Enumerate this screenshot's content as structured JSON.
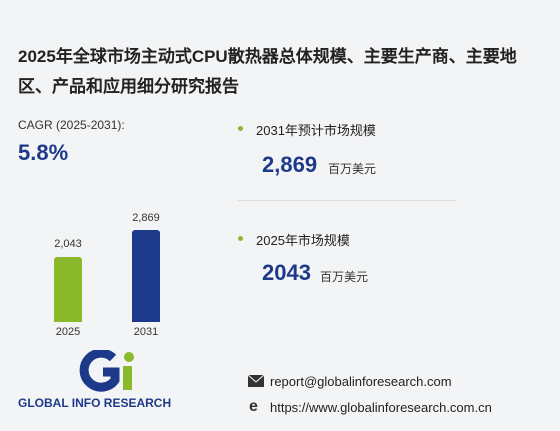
{
  "title": "2025年全球市场主动式CPU散热器总体规模、主要生产商、主要地区、产品和应用细分研究报告",
  "cagr": {
    "label": "CAGR (2025-2031):",
    "value": "5.8%"
  },
  "stats": [
    {
      "label": "2031年预计市场规模",
      "value": "2,869",
      "unit": "百万美元"
    },
    {
      "label": "2025年市场规模",
      "value": "2043",
      "unit": "百万美元"
    }
  ],
  "chart_data": {
    "type": "bar",
    "categories": [
      "2025",
      "2031"
    ],
    "values": [
      2043,
      2869
    ],
    "value_labels": [
      "2,043",
      "2,869"
    ],
    "colors": [
      "#8cb82b",
      "#1d3a8a"
    ]
  },
  "logo": {
    "text": "GLOBAL INFO RESEARCH"
  },
  "contact": {
    "email": "report@globalinforesearch.com",
    "website": "https://www.globalinforesearch.com.cn"
  }
}
